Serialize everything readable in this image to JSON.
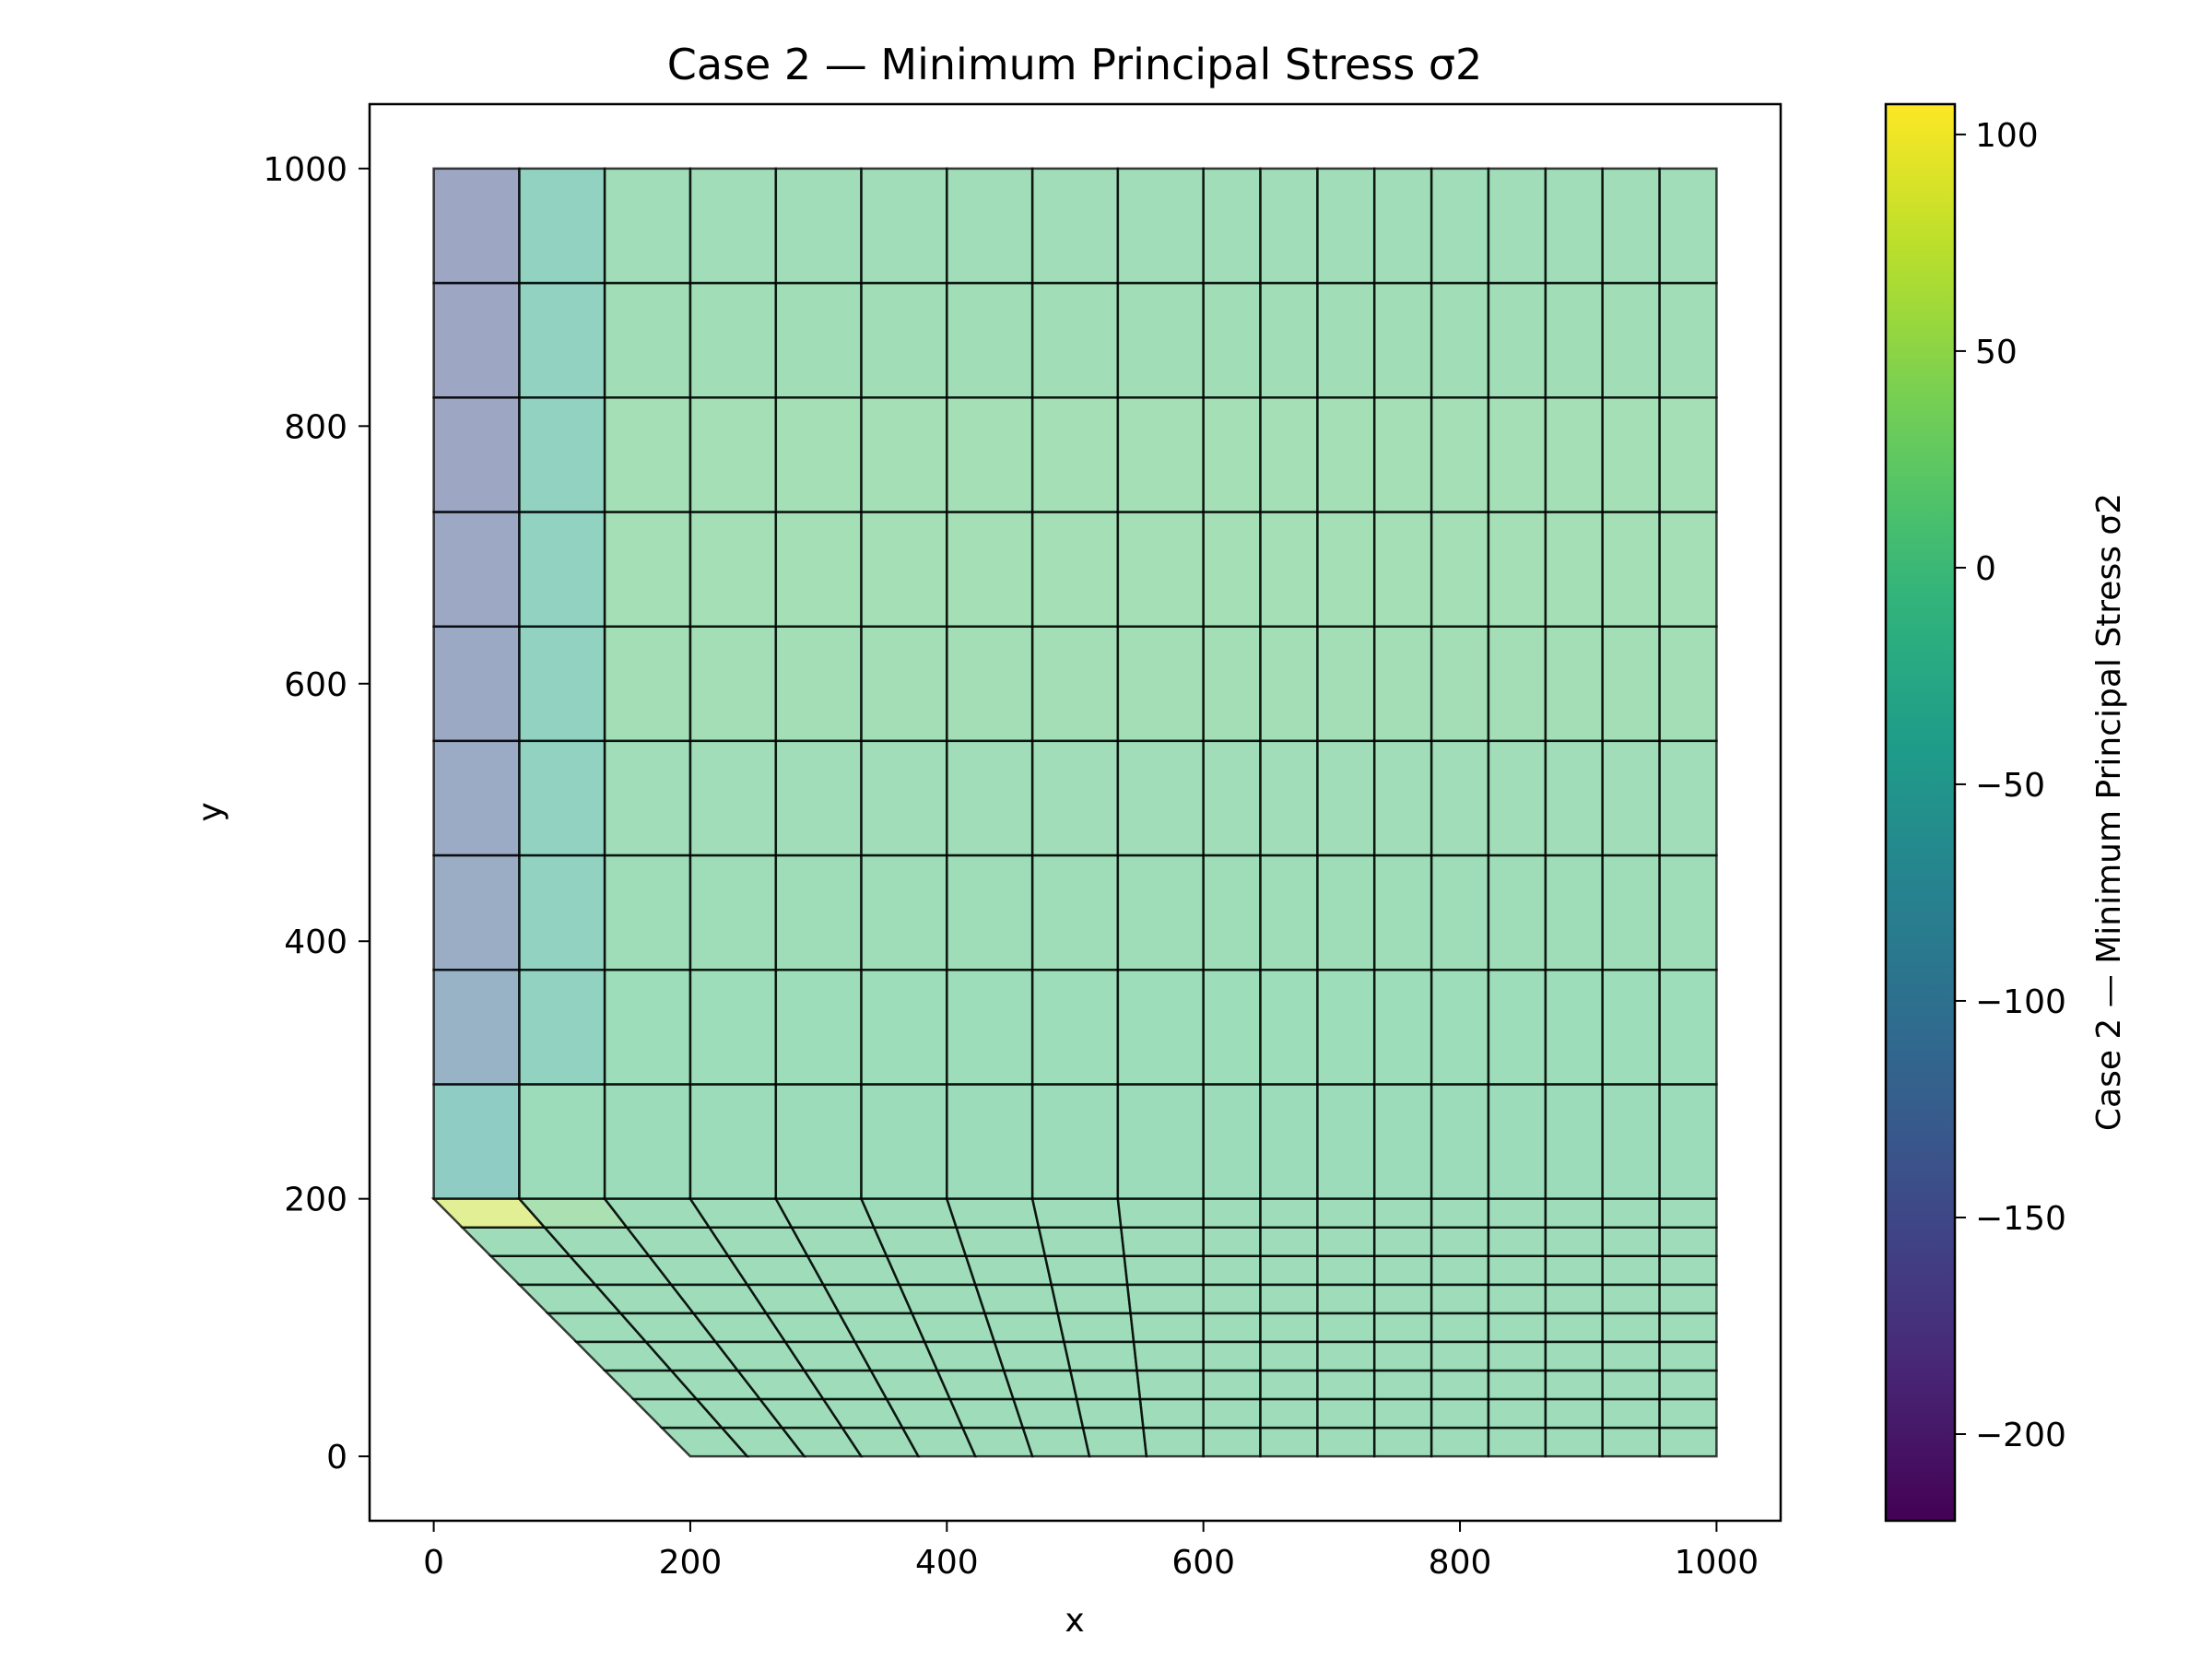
{
  "chart_data": {
    "type": "heatmap",
    "title": "Case  2 — Minimum Principal Stress σ2",
    "xlabel": "x",
    "ylabel": "y",
    "xlim": [
      -50,
      1050
    ],
    "ylim": [
      -50,
      1050
    ],
    "xticks": [
      0,
      200,
      400,
      600,
      800,
      1000
    ],
    "yticks": [
      0,
      200,
      400,
      600,
      800,
      1000
    ],
    "colorbar": {
      "label": "Case  2 — Minimum Principal Stress σ2",
      "min": -220,
      "max": 107,
      "ticks": [
        -200,
        -150,
        -100,
        -50,
        0,
        50,
        100
      ],
      "colormap": "viridis"
    },
    "mesh": {
      "alpha": 0.5,
      "edge_color": "#000000",
      "x_nodes": [
        0,
        66.7,
        133.3,
        200,
        266.7,
        333.3,
        400,
        466.7,
        533.3,
        600,
        644.4,
        688.9,
        733.3,
        777.8,
        822.2,
        866.7,
        911.1,
        955.6,
        1000
      ],
      "upper_y_nodes": [
        200,
        288.9,
        377.8,
        466.7,
        555.6,
        644.4,
        733.3,
        822.2,
        911.1,
        1000
      ],
      "upper_columns": [
        {
          "x0": 0,
          "x1": 66.7,
          "values": [
            -45,
            -115,
            -125,
            -130,
            -135,
            -138,
            -140,
            -140,
            -140
          ]
        },
        {
          "x0": 66.7,
          "x1": 133.3,
          "values": [
            2,
            -28,
            -28,
            -28,
            -28,
            -28,
            -28,
            -28,
            -28
          ]
        },
        {
          "x0": 133.3,
          "x1": 1000,
          "values": [
            2,
            4,
            5,
            7,
            10,
            12,
            12,
            8,
            6
          ]
        }
      ],
      "lower_region": {
        "top_y": 200,
        "bottom_y": 0,
        "rows": 9,
        "slanted_top_x": [
          0,
          66.7,
          133.3,
          200,
          266.7,
          333.3,
          400,
          466.7,
          533.3,
          600
        ],
        "slanted_bottom_x": [
          200,
          244.4,
          288.9,
          333.3,
          377.8,
          422.2,
          466.7,
          511.1,
          555.6,
          600
        ],
        "first_cell_values": [
          80,
          20
        ],
        "default_value": 3
      }
    }
  }
}
